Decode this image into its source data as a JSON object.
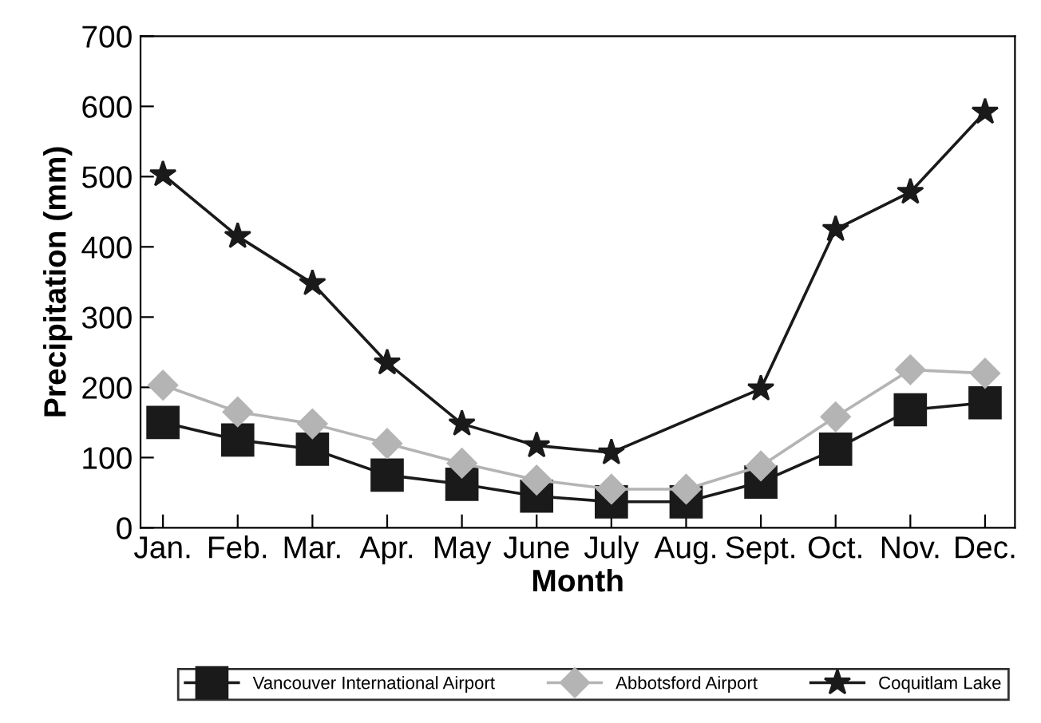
{
  "chart_data": {
    "type": "line",
    "xlabel": "Month",
    "ylabel": "Precipitation (mm)",
    "categories": [
      "Jan.",
      "Feb.",
      "Mar.",
      "Apr.",
      "May",
      "June",
      "July",
      "Aug.",
      "Sept.",
      "Oct.",
      "Nov.",
      "Dec."
    ],
    "ylim": [
      0,
      700
    ],
    "yticks": [
      0,
      100,
      200,
      300,
      400,
      500,
      600,
      700
    ],
    "grid": false,
    "legend": "bottom",
    "series": [
      {
        "name": "Vancouver International Airport",
        "color": "#1a1a1a",
        "marker": "square",
        "values": [
          150,
          125,
          112,
          75,
          62,
          45,
          37,
          37,
          65,
          112,
          168,
          178
        ]
      },
      {
        "name": "Abbotsford Airport",
        "color": "#b4b4b4",
        "marker": "diamond",
        "values": [
          203,
          165,
          148,
          120,
          92,
          68,
          55,
          55,
          88,
          158,
          225,
          220
        ]
      },
      {
        "name": "Coquitlam Lake",
        "color": "#1a1a1a",
        "marker": "star",
        "values": [
          503,
          415,
          348,
          235,
          148,
          117,
          107,
          null,
          198,
          425,
          478,
          592
        ]
      }
    ]
  }
}
